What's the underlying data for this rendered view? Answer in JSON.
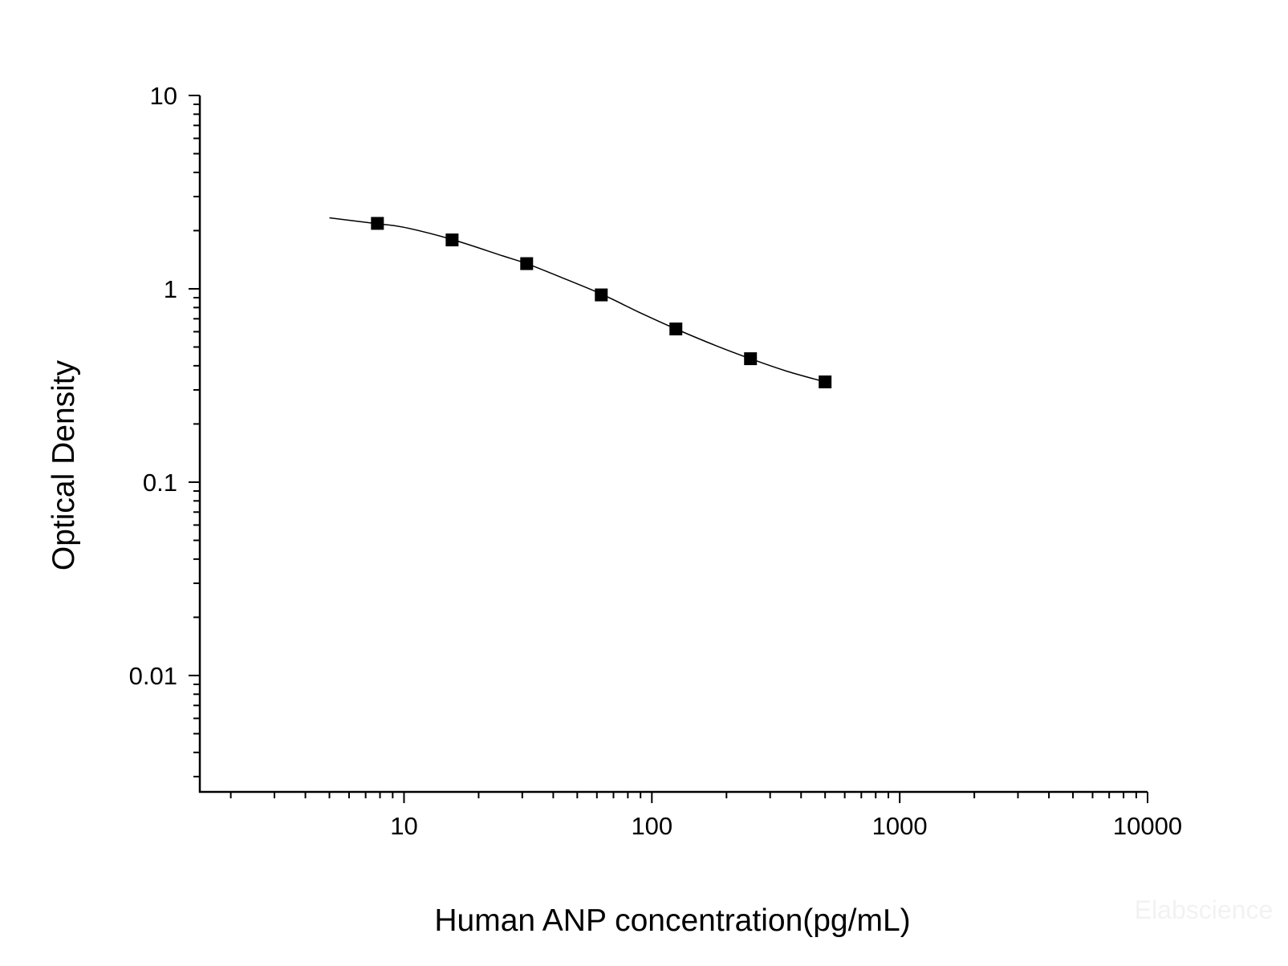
{
  "chart_data": {
    "type": "scatter",
    "title": "",
    "xlabel": "Human ANP concentration(pg/mL)",
    "ylabel": "Optical Density",
    "x_scale": "log",
    "y_scale": "log",
    "xlim": [
      1.5,
      10000
    ],
    "ylim": [
      0.0025,
      10
    ],
    "x_ticks": [
      10,
      100,
      1000,
      10000
    ],
    "x_tick_labels": [
      "10",
      "100",
      "1000",
      "10000"
    ],
    "y_ticks": [
      0.01,
      0.1,
      1,
      10
    ],
    "y_tick_labels": [
      "0.01",
      "0.1",
      "1",
      "10"
    ],
    "grid": false,
    "legend": "none",
    "series": [
      {
        "marker": "square",
        "color": "#000000",
        "points": [
          {
            "x": 7.81,
            "y": 2.18
          },
          {
            "x": 15.63,
            "y": 1.79
          },
          {
            "x": 31.25,
            "y": 1.35
          },
          {
            "x": 62.5,
            "y": 0.93
          },
          {
            "x": 125,
            "y": 0.62
          },
          {
            "x": 250,
            "y": 0.435
          },
          {
            "x": 500,
            "y": 0.33
          }
        ]
      }
    ],
    "fit_curve": {
      "color": "#000000",
      "points": [
        {
          "x": 5,
          "y": 2.33
        },
        {
          "x": 7.81,
          "y": 2.17
        },
        {
          "x": 10,
          "y": 2.08
        },
        {
          "x": 15.63,
          "y": 1.8
        },
        {
          "x": 25,
          "y": 1.48
        },
        {
          "x": 31.25,
          "y": 1.35
        },
        {
          "x": 45,
          "y": 1.12
        },
        {
          "x": 62.5,
          "y": 0.94
        },
        {
          "x": 90,
          "y": 0.75
        },
        {
          "x": 125,
          "y": 0.62
        },
        {
          "x": 180,
          "y": 0.51
        },
        {
          "x": 250,
          "y": 0.435
        },
        {
          "x": 350,
          "y": 0.375
        },
        {
          "x": 500,
          "y": 0.33
        }
      ]
    }
  },
  "watermark": "Elabscience"
}
